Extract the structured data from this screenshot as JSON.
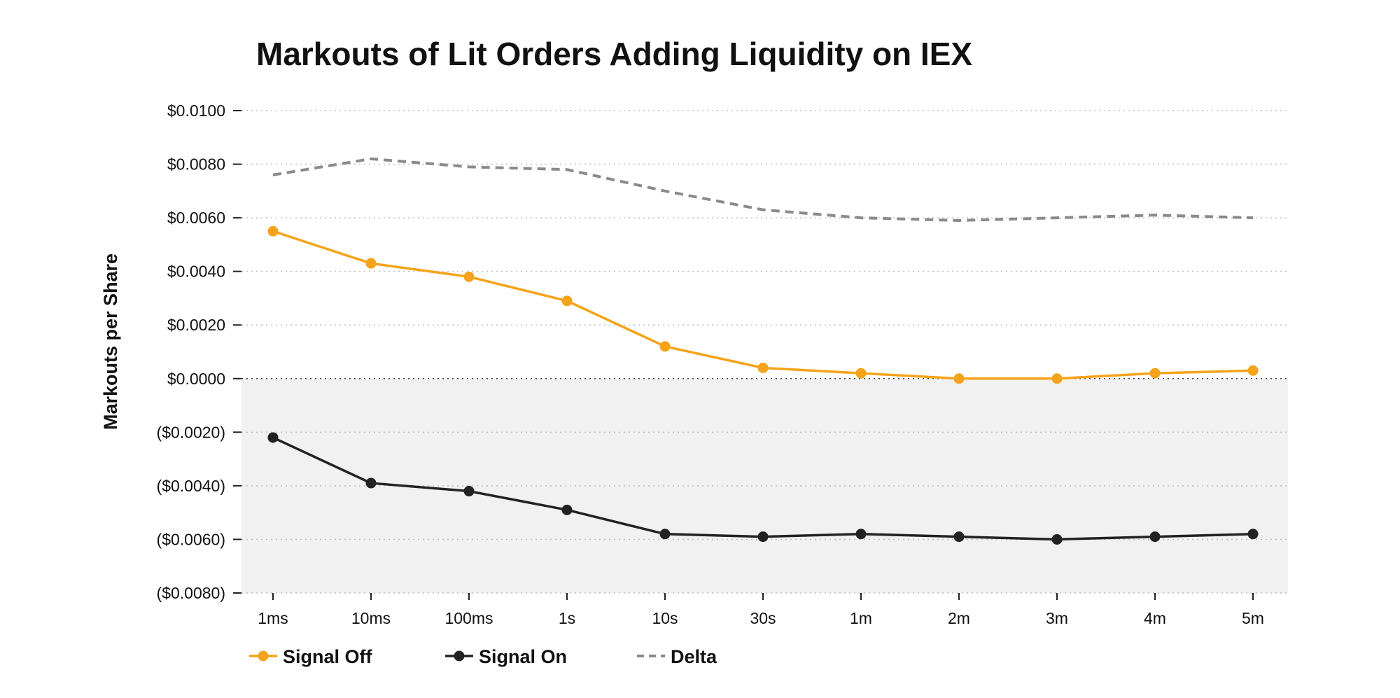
{
  "chart_data": {
    "type": "line",
    "title": "Markouts of Lit Orders Adding Liquidity on IEX",
    "xlabel": "",
    "ylabel": "Markouts per Share",
    "categories": [
      "1ms",
      "10ms",
      "100ms",
      "1s",
      "10s",
      "30s",
      "1m",
      "2m",
      "3m",
      "4m",
      "5m"
    ],
    "ylim": [
      -0.008,
      0.01
    ],
    "yticks": [
      0.01,
      0.008,
      0.006,
      0.004,
      0.002,
      0.0,
      -0.002,
      -0.004,
      -0.006,
      -0.008
    ],
    "ytick_labels": [
      "$0.0100",
      "$0.0080",
      "$0.0060",
      "$0.0040",
      "$0.0020",
      "$0.0000",
      "($0.0020)",
      "($0.0040)",
      "($0.0060)",
      "($0.0080)"
    ],
    "grid": true,
    "legend": "bottom-left",
    "series": [
      {
        "name": "Signal Off",
        "color": "#F5A31A",
        "style": "solid-markers",
        "values": [
          0.0055,
          0.0043,
          0.0038,
          0.0029,
          0.0012,
          0.0004,
          0.0002,
          0.0,
          0.0,
          0.0002,
          0.0003
        ]
      },
      {
        "name": "Signal On",
        "color": "#222222",
        "style": "solid-markers",
        "values": [
          -0.0022,
          -0.0039,
          -0.0042,
          -0.0049,
          -0.0058,
          -0.0059,
          -0.0058,
          -0.0059,
          -0.006,
          -0.0059,
          -0.0058
        ]
      },
      {
        "name": "Delta",
        "color": "#8A8A8A",
        "style": "dashed",
        "values": [
          0.0076,
          0.0082,
          0.0079,
          0.0078,
          0.007,
          0.0063,
          0.006,
          0.0059,
          0.006,
          0.0061,
          0.006
        ]
      }
    ],
    "colors": {
      "negative_region": "#F1F1F1",
      "grid": "#BDBDBD"
    }
  }
}
